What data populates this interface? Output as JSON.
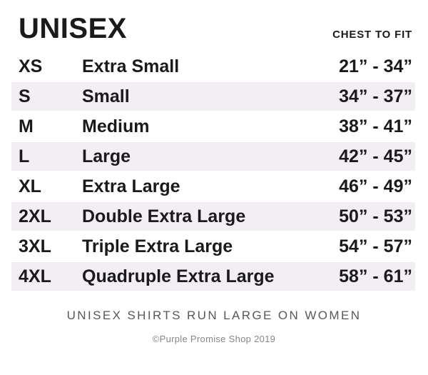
{
  "header": {
    "title": "UNISEX",
    "column_label": "CHEST TO FIT"
  },
  "chart_data": {
    "type": "table",
    "title": "UNISEX",
    "columns": [
      "size_code",
      "size_name",
      "chest_to_fit"
    ],
    "rows": [
      {
        "code": "XS",
        "name": "Extra Small",
        "chest": "21” - 34”"
      },
      {
        "code": "S",
        "name": "Small",
        "chest": "34” - 37”"
      },
      {
        "code": "M",
        "name": "Medium",
        "chest": "38” - 41”"
      },
      {
        "code": "L",
        "name": "Large",
        "chest": "42” - 45”"
      },
      {
        "code": "XL",
        "name": "Extra Large",
        "chest": "46” - 49”"
      },
      {
        "code": "2XL",
        "name": "Double Extra Large",
        "chest": "50” - 53”"
      },
      {
        "code": "3XL",
        "name": "Triple Extra Large",
        "chest": "54” - 57”"
      },
      {
        "code": "4XL",
        "name": "Quadruple Extra Large",
        "chest": "58” - 61”"
      }
    ],
    "layout_hints": {
      "zebra_striping": "rows 2,4,6,8 shaded",
      "range_column_alignment": "right"
    }
  },
  "footer": {
    "note": "UNISEX SHIRTS RUN LARGE ON WOMEN",
    "copyright": "©Purple Promise Shop 2019"
  },
  "colors": {
    "row_shade": "#f2eef4",
    "text": "#1a1a1a",
    "note_gray": "#58585c",
    "copyright_gray": "#86868b",
    "background": "#ffffff"
  }
}
